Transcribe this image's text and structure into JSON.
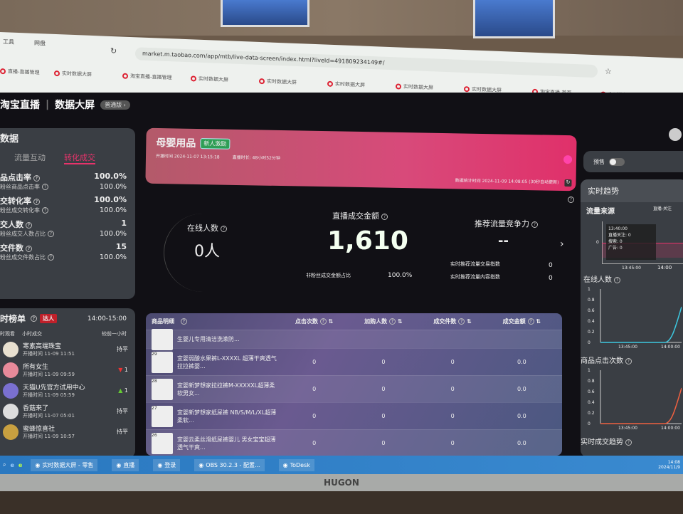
{
  "browser": {
    "bookmarks": [
      "工具",
      "网盘"
    ],
    "url": "market.m.taobao.com/app/mtb/live-data-screen/index.html?liveId=491809234149#/",
    "tabs": [
      "直播-直播管理",
      "实时数据大屏",
      "淘宝直播-直播管理",
      "实时数据大屏",
      "实时数据大屏",
      "实时数据大屏",
      "实时数据大屏",
      "实时数据大屏",
      "淘宝直播-首页",
      "实时数据大屏"
    ]
  },
  "header": {
    "brand": "淘宝直播",
    "title": "数据大屏",
    "version": "普通版 ›"
  },
  "core": {
    "title": "数据",
    "tabs": [
      "流量互动",
      "转化成交"
    ],
    "active_tab": 1,
    "metrics": [
      {
        "label": "品点击率",
        "value": "100.0%",
        "sub_label": "粉丝商品点击率",
        "sub_value": "100.0%"
      },
      {
        "label": "交转化率",
        "value": "100.0%",
        "sub_label": "粉丝成交转化率",
        "sub_value": "100.0%"
      },
      {
        "label": "交人数",
        "value": "1",
        "sub_label": "粉丝成交人数占比",
        "sub_value": "100.0%"
      },
      {
        "label": "交件数",
        "value": "15",
        "sub_label": "粉丝成交件数占比",
        "sub_value": "100.0%"
      }
    ]
  },
  "ranking": {
    "title": "时榜单",
    "badge": "达人",
    "time_range": "14:00-15:00",
    "filters": [
      "时观看",
      "小时成交"
    ],
    "compare": "较前一小时",
    "items": [
      {
        "name": "寒素高端珠宝",
        "time": "开播时间 11-09 11:51",
        "status": "持平"
      },
      {
        "name": "所有女生",
        "time": "开播时间 11-09 09:59",
        "status": "1",
        "trend": "down"
      },
      {
        "name": "天猫U先官方试用中心",
        "time": "开播时间 11-09 05:59",
        "status": "1",
        "trend": "up"
      },
      {
        "name": "香菇来了",
        "time": "开播时间 11-07 05:01",
        "status": "持平"
      },
      {
        "name": "蜜蜂惊喜社",
        "time": "开播时间 11-09 10:57",
        "status": "持平"
      }
    ]
  },
  "banner": {
    "category": "母婴用品",
    "tag": "新人激励",
    "start_time": "开播时间 2024-11-07 13:15:18",
    "duration": "直播时长: 48小时52分钟",
    "stat_time": "数据统计时间 2024-11-09 14:08:05 (30秒自动更新)"
  },
  "stats": {
    "online_label": "在线人数",
    "online_value": "0人",
    "gmv_label": "直播成交金额",
    "gmv_value": "1,610",
    "nonfan_label": "非粉丝成交金额占比",
    "nonfan_value": "100.0%",
    "rec_label": "推荐流量竞争力",
    "rec_value": "--",
    "rec_trade_label": "实时推荐流量交易指数",
    "rec_trade_value": "0",
    "rec_content_label": "实时推荐流量内容指数",
    "rec_content_value": "0"
  },
  "table": {
    "headers": [
      "商品明细",
      "点击次数",
      "加购人数",
      "成交件数",
      "成交金额"
    ],
    "rows": [
      {
        "no": "",
        "name": "生婴儿专用清洁洗漱防...",
        "clicks": "",
        "carts": "",
        "orders": "",
        "amount": ""
      },
      {
        "no": "29",
        "name": "宜婴弱酸水果裤L-XXXXL 超薄干爽透气拉拉裤婴...",
        "clicks": "0",
        "carts": "0",
        "orders": "0",
        "amount": "0.0"
      },
      {
        "no": "28",
        "name": "宜婴新梦想家拉拉裤M-XXXXXL超薄柔软男女...",
        "clicks": "0",
        "carts": "0",
        "orders": "0",
        "amount": "0.0"
      },
      {
        "no": "27",
        "name": "宜婴新梦想家纸尿裤 NB/S/M/L/XL超薄柔软...",
        "clicks": "0",
        "carts": "0",
        "orders": "0",
        "amount": "0.0"
      },
      {
        "no": "26",
        "name": "宜婴云柔丝滑纸尿裤婴儿 男女宝宝超薄透气干爽...",
        "clicks": "0",
        "carts": "0",
        "orders": "0",
        "amount": "0.0"
      }
    ]
  },
  "right": {
    "preview_label": "预售",
    "trend_title": "实时趋势",
    "traffic": {
      "title": "流量来源",
      "legend": "直播-关注",
      "tooltip": [
        "13:40:00",
        "直播关注: 0",
        "搜索: 0",
        "广告: 0"
      ],
      "x_ticks": [
        "13:45:00",
        "14:00"
      ],
      "y_ticks": [
        "0"
      ]
    },
    "online": {
      "title": "在线人数",
      "y_ticks": [
        "1",
        "0.8",
        "0.6",
        "0.4",
        "0.2",
        "0"
      ],
      "x_ticks": [
        "13:45:00",
        "14:00:00"
      ]
    },
    "clicks": {
      "title": "商品点击次数",
      "y_ticks": [
        "1",
        "0.8",
        "0.6",
        "0.4",
        "0.2",
        "0"
      ],
      "x_ticks": [
        "13:45:00",
        "14:00:00"
      ]
    },
    "deal_title": "实时成交趋势"
  },
  "taskbar": {
    "items": [
      "实时数据大屏 - 零售",
      "直播",
      "登录",
      "OBS 30.2.3 - 配置...",
      "ToDesk"
    ],
    "clock": "14:08",
    "date": "2024/11/9"
  },
  "monitor_brand": "HUGON",
  "colors": {
    "accent": "#e8336b",
    "banner_start": "#b35a6a",
    "banner_end": "#e0306a",
    "tag_green": "#2f9e55",
    "bg": "#111015"
  }
}
